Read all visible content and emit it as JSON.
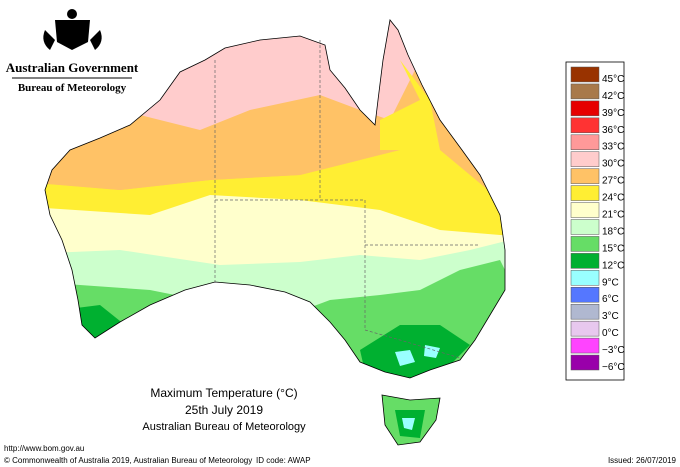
{
  "header": {
    "government": "Australian Government",
    "agency": "Bureau of Meteorology"
  },
  "map": {
    "title": "Maximum Temperature (°C)",
    "date": "25th July 2019",
    "source": "Australian Bureau of Meteorology"
  },
  "legend": {
    "items": [
      {
        "label": "45°C",
        "color": "#993300"
      },
      {
        "label": "42°C",
        "color": "#a8794a"
      },
      {
        "label": "39°C",
        "color": "#e60000"
      },
      {
        "label": "36°C",
        "color": "#ff3333"
      },
      {
        "label": "33°C",
        "color": "#ff9999"
      },
      {
        "label": "30°C",
        "color": "#ffcccc"
      },
      {
        "label": "27°C",
        "color": "#ffc266"
      },
      {
        "label": "24°C",
        "color": "#ffee33"
      },
      {
        "label": "21°C",
        "color": "#ffffcc"
      },
      {
        "label": "18°C",
        "color": "#ccffcc"
      },
      {
        "label": "15°C",
        "color": "#66dd66"
      },
      {
        "label": "12°C",
        "color": "#00b030"
      },
      {
        "label": "9°C",
        "color": "#99ffff"
      },
      {
        "label": "6°C",
        "color": "#5577ff"
      },
      {
        "label": "3°C",
        "color": "#b0b8d0"
      },
      {
        "label": "0°C",
        "color": "#e8c8ee"
      },
      {
        "label": "−3°C",
        "color": "#ff44ff"
      },
      {
        "label": "−6°C",
        "color": "#9900aa"
      }
    ]
  },
  "footer": {
    "url": "http://www.bom.gov.au",
    "copyright": "© Commonwealth of Australia 2019, Australian Bureau of Meteorology",
    "id_code": "ID code: AWAP",
    "issued": "Issued: 26/07/2019"
  }
}
